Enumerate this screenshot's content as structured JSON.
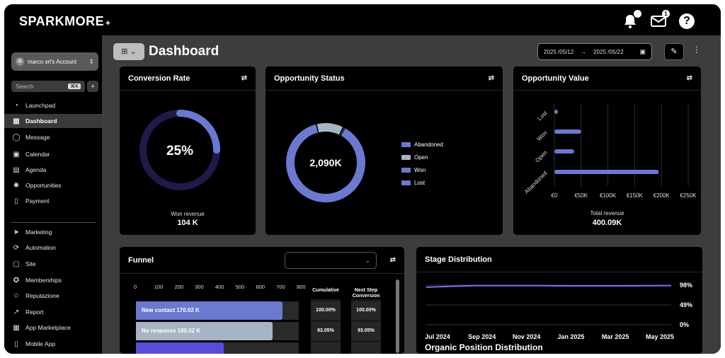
{
  "app": {
    "logo": "SPARKMORE",
    "notifications_badge": "",
    "mail_badge": "1",
    "help_label": "?"
  },
  "sidebar": {
    "account": "marco srl's Account",
    "search_placeholder": "Search",
    "search_shortcut": "⌘K",
    "items": [
      {
        "label": "Launchpad",
        "icon": "launchpad-icon",
        "glyph": "◔"
      },
      {
        "label": "Dashboard",
        "icon": "dashboard-icon",
        "glyph": "▦",
        "active": true
      },
      {
        "label": "Message",
        "icon": "message-icon",
        "glyph": "◯"
      },
      {
        "label": "Calendar",
        "icon": "calendar-icon",
        "glyph": "▣"
      },
      {
        "label": "Agenda",
        "icon": "agenda-icon",
        "glyph": "▤"
      },
      {
        "label": "Opportunities",
        "icon": "opportunities-icon",
        "glyph": "✺"
      },
      {
        "label": "Payment",
        "icon": "payment-icon",
        "glyph": "▯"
      },
      {
        "label": "Marketing",
        "icon": "marketing-icon",
        "glyph": "➤"
      },
      {
        "label": "Automation",
        "icon": "automation-icon",
        "glyph": "⟳"
      },
      {
        "label": "Site",
        "icon": "site-icon",
        "glyph": "▢"
      },
      {
        "label": "Memberships",
        "icon": "memberships-icon",
        "glyph": "✪"
      },
      {
        "label": "Reputazione",
        "icon": "reputation-icon",
        "glyph": "☆"
      },
      {
        "label": "Report",
        "icon": "report-icon",
        "glyph": "↗"
      },
      {
        "label": "App Marketplace",
        "icon": "marketplace-icon",
        "glyph": "▦"
      },
      {
        "label": "Mobile App",
        "icon": "mobile-icon",
        "glyph": "▯"
      }
    ]
  },
  "header": {
    "title": "Dashboard",
    "date_from": "2025 /05/12",
    "date_to": "2025 /05/22"
  },
  "cards": {
    "conversion": {
      "title": "Conversion Rate",
      "value": "25%",
      "percent": 25,
      "label": "Won revenue",
      "amount": "104 K"
    },
    "status": {
      "title": "Opportunity Status",
      "value": "2,090K",
      "legend": [
        {
          "label": "Abandoned",
          "color": "#6b79cf"
        },
        {
          "label": "Open",
          "color": "#a7b4c4"
        },
        {
          "label": "Won",
          "color": "#6b79cf"
        },
        {
          "label": "Lost",
          "color": "#6b79cf"
        }
      ]
    },
    "value": {
      "title": "Opportunity Value",
      "label": "Total revenue",
      "amount": "400.09K"
    },
    "funnel": {
      "title": "Funnel",
      "select_value": "",
      "cumulative_header": "Cumulative",
      "nextstep_header": "Next Step Conversion",
      "rows": [
        {
          "label": "New contact",
          "value": "170.02 K",
          "cumulative": "100.00%",
          "next": "100.00%"
        },
        {
          "label": "No response",
          "value": "100.02 K",
          "cumulative": "93.05%",
          "next": "93.05%"
        },
        {
          "label": "",
          "value": "",
          "cumulative": "",
          "next": ""
        }
      ]
    },
    "stage": {
      "title": "Stage Distribution"
    },
    "organic": {
      "title": "Organic Position Distribution"
    }
  },
  "chart_data": [
    {
      "type": "pie",
      "title": "Conversion Rate",
      "labels": [
        "Won revenue"
      ],
      "values": [
        25
      ],
      "unit": "%"
    },
    {
      "type": "pie",
      "title": "Opportunity Status",
      "labels": [
        "Abandoned",
        "Open",
        "Won",
        "Lost"
      ],
      "values": [
        88,
        11,
        0.5,
        0.5
      ],
      "colors": [
        "#6b79cf",
        "#a7b4c4",
        "#6b79cf",
        "#6b79cf"
      ]
    },
    {
      "type": "bar",
      "orientation": "horizontal",
      "title": "Opportunity Value",
      "categories": [
        "Lost",
        "Won",
        "Open",
        "Abandoned"
      ],
      "values": [
        2000,
        50000,
        37000,
        195000
      ],
      "xlim": [
        0,
        250000
      ],
      "xticks": [
        "€0",
        "€50K",
        "€100K",
        "€150K",
        "€200K",
        "€250K"
      ],
      "color": "#6b79cf"
    },
    {
      "type": "bar",
      "orientation": "horizontal",
      "title": "Funnel",
      "categories": [
        "New contact",
        "No response",
        ""
      ],
      "values": [
        720,
        670,
        430
      ],
      "xlim": [
        0,
        800
      ],
      "xticks": [
        "0",
        "100",
        "200",
        "300",
        "400",
        "500",
        "600",
        "700",
        "800"
      ],
      "colors": [
        "#6b79cf",
        "#a7b4c4",
        "#5b4bd9"
      ]
    },
    {
      "type": "line",
      "title": "Stage Distribution",
      "x": [
        "Jul 2024",
        "Sep 2024",
        "Nov 2024",
        "Jan 2025",
        "Mar 2025",
        "May 2025"
      ],
      "series": [
        {
          "values": [
            93,
            97,
            97,
            96,
            96,
            97
          ]
        }
      ],
      "ylim": [
        0,
        98
      ],
      "yticks": [
        "98%",
        "49%",
        "0%"
      ],
      "color": "#7d6cff"
    }
  ]
}
